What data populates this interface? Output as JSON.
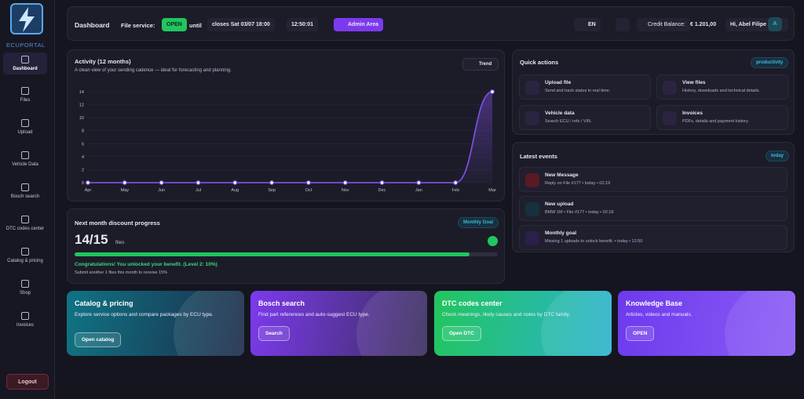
{
  "sidebar": {
    "logo": "ECUPORTAL",
    "nav": [
      "Dashboard",
      "Files",
      "Upload",
      "Vehicle Data",
      "Bosch search",
      "DTC codes center",
      "Catalog & pricing",
      "Shop",
      "Invoices"
    ],
    "logout": "Logout"
  },
  "topbar": {
    "title": "Dashboard",
    "service_label": "File service:",
    "service_status": "OPEN",
    "until": "until",
    "closes": "closes Sat 03/07 18:00",
    "time": "12:50:01",
    "admin": "Admin Area",
    "lang": "EN",
    "credit_label": "Credit Balance:",
    "credit": "€ 1.201,00",
    "greeting": "Hi, Abel Filipe",
    "avatar": "A"
  },
  "activity": {
    "title": "Activity (12 months)",
    "subtitle": "A clean view of your sending cadence — ideal for forecasting and planning.",
    "button": "Trend",
    "chart": {
      "type": "line",
      "categories": [
        "Apr",
        "May",
        "Jun",
        "Jul",
        "Aug",
        "Sep",
        "Oct",
        "Nov",
        "Dec",
        "Jan",
        "Feb",
        "Mar"
      ],
      "values": [
        0,
        0,
        0,
        0,
        0,
        0,
        0,
        0,
        0,
        0,
        0,
        14
      ],
      "color": "#7c4ddb",
      "ylim": [
        0,
        14
      ],
      "yticks": [
        0,
        2,
        4,
        6,
        8,
        10,
        12,
        14
      ]
    }
  },
  "discount": {
    "title": "Next month discount progress",
    "badge": "Monthly Goal",
    "done": 14,
    "goal": 15,
    "unit": "files",
    "congrats": "Congratulations! You unlocked your benefit. (Level 2: 10%)",
    "note": "Submit another 1 files this month to receive 15%"
  },
  "quick_actions": {
    "title": "Quick actions",
    "badge": "productivity",
    "items": [
      {
        "title": "Upload file",
        "desc": "Send and track status in real time."
      },
      {
        "title": "View files",
        "desc": "History, downloads and technical details."
      },
      {
        "title": "Vehicle data",
        "desc": "Search ECU / refs / VIN."
      },
      {
        "title": "Invoices",
        "desc": "PDFs, details and payment history."
      }
    ]
  },
  "events": {
    "title": "Latest events",
    "badge": "today",
    "items": [
      {
        "title": "New Message",
        "desc": "Reply on File #177 • today • 02:19"
      },
      {
        "title": "New upload",
        "desc": "BMW 1M • File #177 • today • 02:18"
      },
      {
        "title": "Monthly goal",
        "desc": "Missing 1 uploads to unlock benefit. • today • 12:50"
      }
    ]
  },
  "cards": [
    {
      "title": "Catalog & pricing",
      "desc": "Explore service options and compare packages by ECU type.",
      "button": "Open catalog"
    },
    {
      "title": "Bosch search",
      "desc": "Find part references and auto-suggest ECU type.",
      "button": "Search"
    },
    {
      "title": "DTC codes center",
      "desc": "Check meanings, likely causes and notes by DTC family.",
      "button": "Open DTC"
    },
    {
      "title": "Knowledge Base",
      "desc": "Articles, videos and manuals.",
      "button": "OPEN"
    }
  ]
}
